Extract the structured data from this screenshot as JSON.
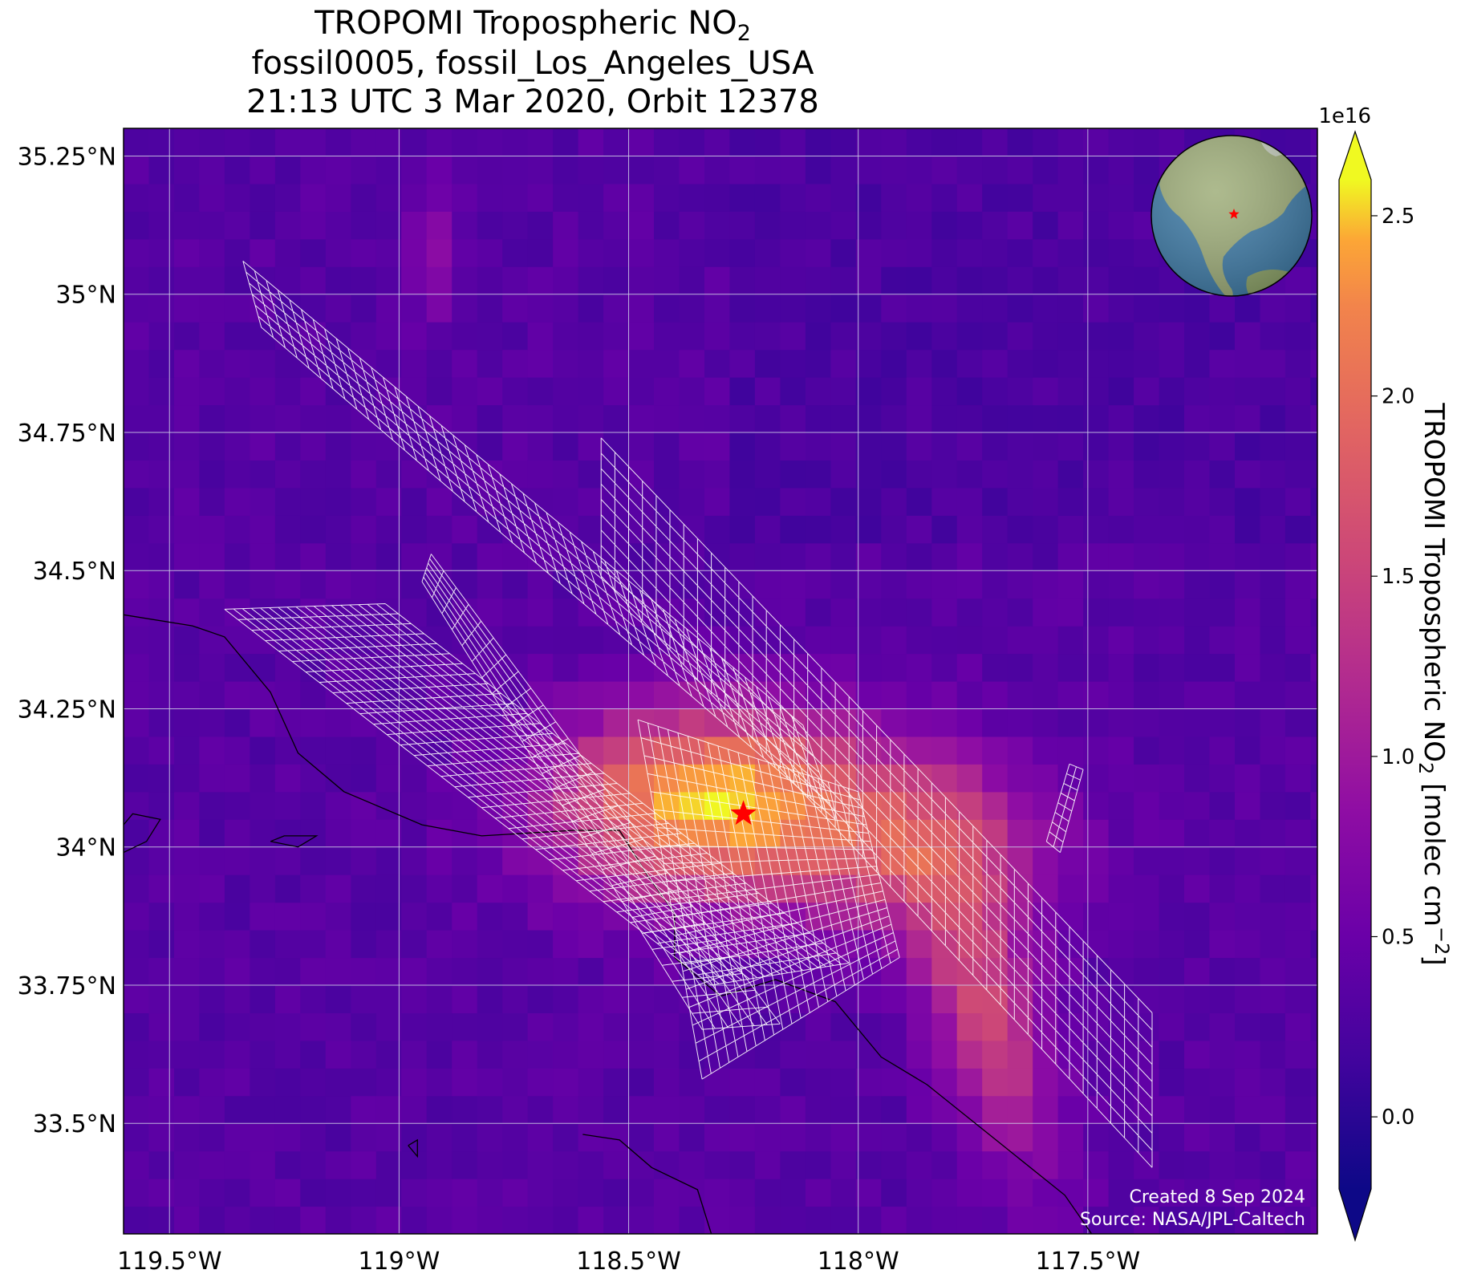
{
  "title": {
    "line1_main": "TROPOMI Tropospheric NO",
    "line1_sub": "2",
    "line2": "fossil0005, fossil_Los_Angeles_USA",
    "line3": "21:13 UTC 3 Mar 2020, Orbit 12378"
  },
  "map": {
    "lon_range": [
      -119.6,
      -117.0
    ],
    "lat_range": [
      33.3,
      35.3
    ],
    "lon_ticks": [
      {
        "value": -119.5,
        "label": "119.5°W"
      },
      {
        "value": -119.0,
        "label": "119°W"
      },
      {
        "value": -118.5,
        "label": "118.5°W"
      },
      {
        "value": -118.0,
        "label": "118°W"
      },
      {
        "value": -117.5,
        "label": "117.5°W"
      }
    ],
    "lat_ticks": [
      {
        "value": 35.25,
        "label": "35.25°N"
      },
      {
        "value": 35.0,
        "label": "35°N"
      },
      {
        "value": 34.75,
        "label": "34.75°N"
      },
      {
        "value": 34.5,
        "label": "34.5°N"
      },
      {
        "value": 34.25,
        "label": "34.25°N"
      },
      {
        "value": 34.0,
        "label": "34°N"
      },
      {
        "value": 33.75,
        "label": "33.75°N"
      },
      {
        "value": 33.5,
        "label": "33.5°N"
      }
    ],
    "target": {
      "lon": -118.25,
      "lat": 34.06,
      "name": "Los Angeles",
      "color": "#ff0000"
    },
    "grid_color": "#d0d0e8",
    "coastline_color": "#000000",
    "footprint_color": "#ffffff"
  },
  "colorbar": {
    "colormap": "plasma",
    "min": -0.2,
    "max": 2.6,
    "ticks": [
      {
        "value": 0.0,
        "label": "0.0"
      },
      {
        "value": 0.5,
        "label": "0.5"
      },
      {
        "value": 1.0,
        "label": "1.0"
      },
      {
        "value": 1.5,
        "label": "1.5"
      },
      {
        "value": 2.0,
        "label": "2.0"
      },
      {
        "value": 2.5,
        "label": "2.5"
      }
    ],
    "exponent_label": "1e16",
    "label_main": "TROPOMI Tropospheric NO",
    "label_sub": "2",
    "label_unit": " [molec cm",
    "label_sup": "−2",
    "label_close": "]",
    "extend": "both"
  },
  "credits": {
    "line1": "Created 8 Sep 2024",
    "line2": "Source: NASA/JPL-Caltech"
  },
  "inset": {
    "ocean_color": "#3f7ca8",
    "land_color": "#9fae7a",
    "marker_color": "#ff0000"
  }
}
